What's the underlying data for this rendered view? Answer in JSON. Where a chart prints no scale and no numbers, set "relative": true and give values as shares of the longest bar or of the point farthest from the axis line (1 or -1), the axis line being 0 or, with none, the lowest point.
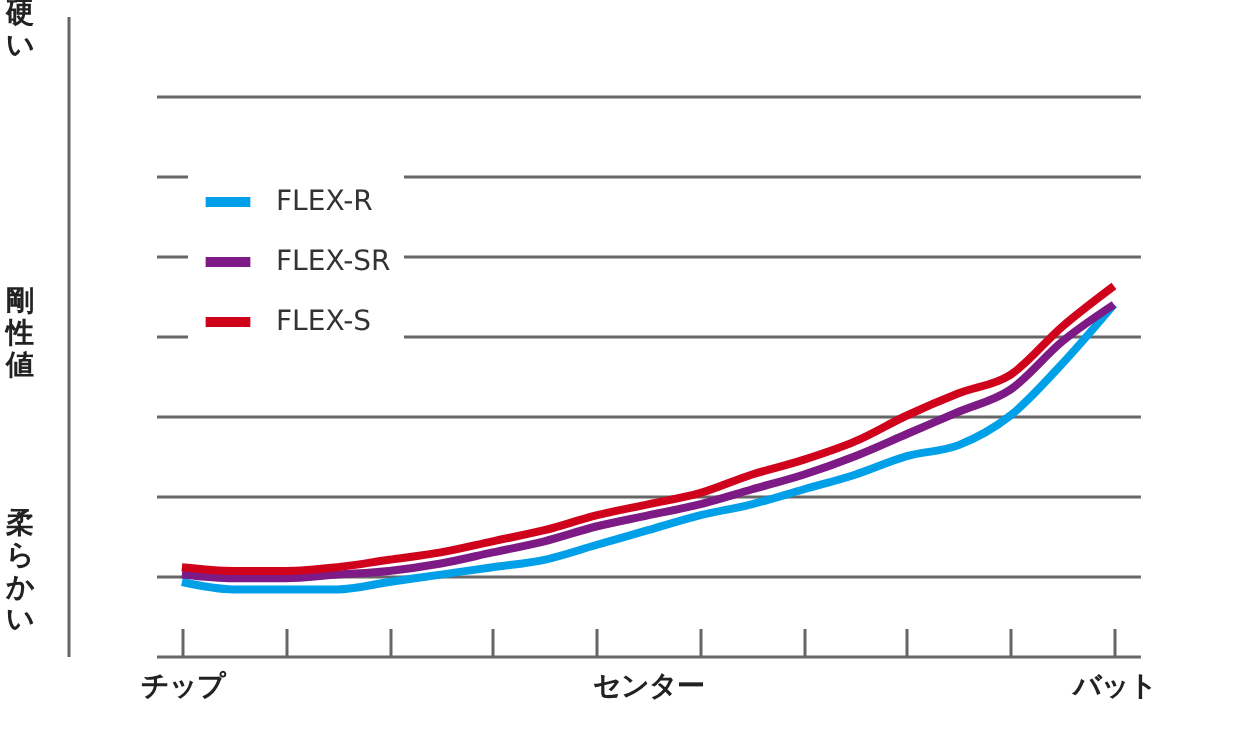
{
  "chart_data": {
    "type": "line",
    "relative": true,
    "ylabel": "剛性値",
    "annotations": [
      "硬い",
      "柔らかい"
    ],
    "categories": [
      "チップ",
      null,
      null,
      null,
      null,
      null,
      null,
      null,
      null,
      "センター",
      null,
      null,
      null,
      null,
      null,
      null,
      null,
      null,
      "バット"
    ],
    "series": [
      {
        "name": "FLEX-R",
        "color": "#00a0e9",
        "values": [
          0.2,
          0.18,
          0.18,
          0.18,
          0.2,
          0.22,
          0.24,
          0.26,
          0.3,
          0.34,
          0.38,
          0.41,
          0.45,
          0.49,
          0.54,
          0.57,
          0.65,
          0.79,
          0.95
        ]
      },
      {
        "name": "FLEX-SR",
        "color": "#7d1a85",
        "values": [
          0.22,
          0.21,
          0.21,
          0.22,
          0.23,
          0.25,
          0.28,
          0.31,
          0.35,
          0.38,
          0.41,
          0.45,
          0.49,
          0.54,
          0.6,
          0.66,
          0.72,
          0.85,
          0.95
        ]
      },
      {
        "name": "FLEX-S",
        "color": "#d0021b",
        "values": [
          0.24,
          0.23,
          0.23,
          0.24,
          0.26,
          0.28,
          0.31,
          0.34,
          0.38,
          0.41,
          0.44,
          0.49,
          0.53,
          0.58,
          0.65,
          0.71,
          0.76,
          0.89,
          1
        ]
      }
    ],
    "grid": "y",
    "legend": "top left"
  }
}
